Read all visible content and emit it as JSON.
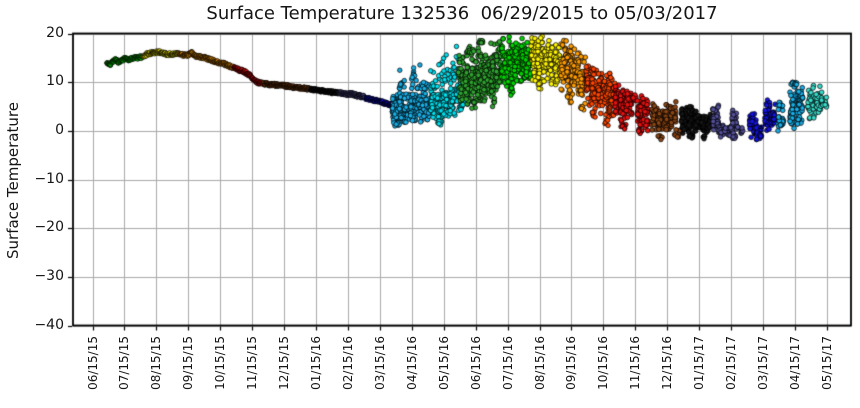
{
  "title": "Surface Temperature 132536  06/29/2015 to 05/03/2017",
  "y_axis_label": "Surface Temperature",
  "chart_data": {
    "type": "scatter",
    "title": "Surface Temperature 132536  06/29/2015 to 05/03/2017",
    "xlabel": "",
    "ylabel": "Surface Temperature",
    "ylim": [
      -40,
      20
    ],
    "grid": true,
    "background": "#ffffff",
    "grid_color": "#a9a9a9",
    "frame_color": "#000000",
    "marker_edge_color": "#000000",
    "y_tick_labels": [
      "20",
      "10",
      "0",
      "−10",
      "−20",
      "−30",
      "−40"
    ],
    "y_tick_values": [
      20,
      10,
      0,
      -10,
      -20,
      -30,
      -40
    ],
    "x_tick_labels": [
      "06/15/15",
      "07/15/15",
      "08/15/15",
      "09/15/15",
      "10/15/15",
      "11/15/15",
      "12/15/15",
      "01/15/16",
      "02/15/16",
      "03/15/16",
      "04/15/16",
      "05/15/16",
      "06/15/16",
      "07/15/16",
      "08/15/16",
      "09/15/16",
      "10/15/16",
      "11/15/16",
      "12/15/16",
      "01/15/17",
      "02/15/17",
      "03/15/17",
      "04/15/17",
      "05/15/17"
    ],
    "x_unit": "months_since_06/15/15",
    "palette": {
      "jul_green": "#00D400",
      "aug_yellow": "#FFF500",
      "sep_orange": "#FF9C00",
      "oct_orangered": "#FF4500",
      "nov_red": "#E81010",
      "dec_brown": "#8B4513",
      "jan_black": "#141414",
      "feb_darkslate": "#54509A",
      "mar_blue": "#1414E0",
      "apr_skyblue": "#18AEE6",
      "may_cyan": "#00E0EE",
      "jun_green": "#2FA32F",
      "spring17_turquoise": "#38DCCB"
    },
    "line_segments": [
      {
        "c": "#00D400",
        "pts": [
          [
            0.45,
            14.1
          ],
          [
            0.55,
            13.6
          ],
          [
            0.65,
            14.3
          ],
          [
            0.72,
            14.7
          ],
          [
            0.8,
            14.2
          ],
          [
            0.92,
            14.4
          ],
          [
            1.02,
            14.9
          ],
          [
            1.12,
            14.6
          ],
          [
            1.22,
            14.9
          ],
          [
            1.32,
            15.1
          ],
          [
            1.45,
            15.0
          ],
          [
            1.56,
            15.2
          ]
        ]
      },
      {
        "c": "#FFF500",
        "pts": [
          [
            1.58,
            15.3
          ],
          [
            1.75,
            15.9
          ],
          [
            1.9,
            16.0
          ],
          [
            2.05,
            16.2
          ],
          [
            2.2,
            16.0
          ],
          [
            2.35,
            15.7
          ],
          [
            2.5,
            15.8
          ],
          [
            2.62,
            15.9
          ],
          [
            2.7,
            15.8
          ]
        ]
      },
      {
        "c": "#FF9C00",
        "pts": [
          [
            2.72,
            15.8
          ],
          [
            2.9,
            15.5
          ],
          [
            3.0,
            15.6
          ],
          [
            3.1,
            16.0
          ],
          [
            3.2,
            15.5
          ],
          [
            3.35,
            15.2
          ],
          [
            3.5,
            15.0
          ],
          [
            3.7,
            14.6
          ],
          [
            3.9,
            14.1
          ],
          [
            4.1,
            13.8
          ],
          [
            4.25,
            13.4
          ],
          [
            4.4,
            13.1
          ]
        ]
      },
      {
        "c": "#E81010",
        "pts": [
          [
            4.42,
            13.0
          ],
          [
            4.6,
            12.5
          ],
          [
            4.75,
            12.2
          ],
          [
            4.9,
            11.5
          ],
          [
            5.0,
            10.8
          ],
          [
            5.1,
            10.2
          ],
          [
            5.2,
            9.9
          ],
          [
            5.33,
            9.8
          ]
        ]
      },
      {
        "c": "#8B4513",
        "pts": [
          [
            5.36,
            9.7
          ],
          [
            5.6,
            9.5
          ],
          [
            5.8,
            9.4
          ],
          [
            6.1,
            9.2
          ],
          [
            6.4,
            8.9
          ],
          [
            6.65,
            8.7
          ],
          [
            6.8,
            8.6
          ]
        ]
      },
      {
        "c": "#141414",
        "pts": [
          [
            6.83,
            8.5
          ],
          [
            7.1,
            8.3
          ],
          [
            7.3,
            8.1
          ],
          [
            7.5,
            7.9
          ],
          [
            7.7,
            7.8
          ]
        ]
      },
      {
        "c": "#54509A",
        "pts": [
          [
            7.73,
            7.8
          ],
          [
            7.95,
            7.5
          ],
          [
            8.1,
            7.6
          ],
          [
            8.25,
            7.3
          ],
          [
            8.4,
            7.1
          ],
          [
            8.53,
            6.9
          ]
        ]
      },
      {
        "c": "#1414E0",
        "pts": [
          [
            8.56,
            6.7
          ],
          [
            8.8,
            6.3
          ],
          [
            9.0,
            6.0
          ],
          [
            9.15,
            5.7
          ],
          [
            9.3,
            5.4
          ],
          [
            9.42,
            5.2
          ],
          [
            9.54,
            5.3
          ]
        ]
      }
    ],
    "cluster_stripes": [
      {
        "c": "#18AEE6",
        "m": 9.52,
        "y": 4.5,
        "lo": 1.8,
        "hi": 7.5,
        "n": 75,
        "w": 0.13,
        "b": 0.8
      },
      {
        "c": "#18AEE6",
        "m": 9.68,
        "y": 5.0,
        "lo": 2.0,
        "hi": 9.0,
        "n": 35,
        "t": 13.5
      },
      {
        "c": "#18AEE6",
        "m": 9.85,
        "y": 4.8,
        "lo": 1.5,
        "hi": 8.0,
        "n": 32
      },
      {
        "c": "#18AEE6",
        "m": 10.05,
        "y": 5.2,
        "lo": 2.0,
        "hi": 10.0,
        "n": 40,
        "t": 17.3
      },
      {
        "c": "#18AEE6",
        "m": 10.25,
        "y": 5.0,
        "lo": 1.8,
        "hi": 8.5,
        "n": 36,
        "t": 15.5
      },
      {
        "c": "#18AEE6",
        "m": 10.45,
        "y": 4.8,
        "lo": 2.0,
        "hi": 7.5,
        "n": 45,
        "w": 0.12,
        "t": 12.0
      },
      {
        "c": "#00E0EE",
        "m": 10.68,
        "y": 5.5,
        "lo": 2.5,
        "hi": 9.0,
        "n": 40,
        "t": 16.0
      },
      {
        "c": "#00E0EE",
        "m": 10.88,
        "y": 5.0,
        "lo": 2.0,
        "hi": 8.0,
        "n": 46,
        "t": 18.0,
        "b": 1.0
      },
      {
        "c": "#00E0EE",
        "m": 11.08,
        "y": 6.0,
        "lo": 2.5,
        "hi": 10.0,
        "n": 42,
        "t": 18.5
      },
      {
        "c": "#00E0EE",
        "m": 11.28,
        "y": 6.5,
        "lo": 3.0,
        "hi": 11.0,
        "n": 40,
        "t": 17.0
      },
      {
        "c": "#00E0EE",
        "m": 11.48,
        "y": 7.0,
        "lo": 3.5,
        "hi": 12.0,
        "n": 36,
        "t": 18.5
      },
      {
        "c": "#00E0EE",
        "m": 11.68,
        "y": 7.5,
        "lo": 4.0,
        "hi": 12.0,
        "n": 30
      },
      {
        "c": "#2FA32F",
        "m": 11.55,
        "y": 9.5,
        "lo": 5.0,
        "hi": 14.0,
        "n": 33,
        "t": 18.0
      },
      {
        "c": "#2FA32F",
        "m": 11.75,
        "y": 10.0,
        "lo": 5.0,
        "hi": 16.0,
        "n": 40,
        "t": 19.0
      },
      {
        "c": "#2FA32F",
        "m": 11.95,
        "y": 10.5,
        "lo": 6.0,
        "hi": 17.0,
        "n": 46,
        "b": 4.0
      },
      {
        "c": "#2FA32F",
        "m": 12.15,
        "y": 11.0,
        "lo": 6.0,
        "hi": 18.0,
        "n": 50,
        "t": 19.5
      },
      {
        "c": "#2FA32F",
        "m": 12.35,
        "y": 11.5,
        "lo": 6.0,
        "hi": 18.0,
        "n": 46
      },
      {
        "c": "#2FA32F",
        "m": 12.55,
        "y": 12.0,
        "lo": 7.0,
        "hi": 18.5,
        "n": 40,
        "b": 4.5
      },
      {
        "c": "#2FA32F",
        "m": 12.72,
        "y": 12.5,
        "lo": 8.0,
        "hi": 19.0,
        "n": 34
      },
      {
        "c": "#00D400",
        "m": 12.9,
        "y": 13.5,
        "lo": 9.0,
        "hi": 19.0,
        "n": 46
      },
      {
        "c": "#00D400",
        "m": 13.1,
        "y": 14.0,
        "lo": 9.0,
        "hi": 19.5,
        "n": 50,
        "b": 6.5
      },
      {
        "c": "#00D400",
        "m": 13.3,
        "y": 14.0,
        "lo": 10.0,
        "hi": 19.5,
        "n": 46
      },
      {
        "c": "#00D400",
        "m": 13.5,
        "y": 14.5,
        "lo": 10.0,
        "hi": 19.8,
        "n": 40
      },
      {
        "c": "#00D400",
        "m": 13.65,
        "y": 14.0,
        "lo": 10.0,
        "hi": 19.0,
        "n": 34
      },
      {
        "c": "#FFF500",
        "m": 13.82,
        "y": 15.0,
        "lo": 10.0,
        "hi": 19.8,
        "n": 50
      },
      {
        "c": "#FFF500",
        "m": 14.02,
        "y": 15.0,
        "lo": 10.0,
        "hi": 19.5,
        "n": 50,
        "b": 8.0
      },
      {
        "c": "#FFF500",
        "m": 14.22,
        "y": 14.5,
        "lo": 9.5,
        "hi": 19.0,
        "n": 44
      },
      {
        "c": "#FFF500",
        "m": 14.42,
        "y": 14.0,
        "lo": 9.0,
        "hi": 18.5,
        "n": 40
      },
      {
        "c": "#FFF500",
        "m": 14.58,
        "y": 13.5,
        "lo": 9.0,
        "hi": 18.0,
        "n": 34
      },
      {
        "c": "#FF9C00",
        "m": 14.75,
        "y": 13.0,
        "lo": 8.0,
        "hi": 19.0,
        "n": 46
      },
      {
        "c": "#FF9C00",
        "m": 14.95,
        "y": 12.5,
        "lo": 7.0,
        "hi": 18.0,
        "n": 46,
        "b": 5.0
      },
      {
        "c": "#FF9C00",
        "m": 15.15,
        "y": 12.0,
        "lo": 6.5,
        "hi": 17.0,
        "n": 40
      },
      {
        "c": "#FF9C00",
        "m": 15.35,
        "y": 11.0,
        "lo": 5.0,
        "hi": 16.0,
        "n": 30,
        "b": 3.5
      },
      {
        "c": "#FF4500",
        "m": 15.55,
        "y": 10.0,
        "lo": 5.0,
        "hi": 13.5,
        "n": 44
      },
      {
        "c": "#FF4500",
        "m": 15.72,
        "y": 9.0,
        "lo": 4.0,
        "hi": 13.0,
        "n": 40,
        "b": 2.0
      },
      {
        "c": "#FF4500",
        "m": 15.92,
        "y": 8.5,
        "lo": 3.5,
        "hi": 13.0,
        "n": 44
      },
      {
        "c": "#FF4500",
        "m": 16.12,
        "y": 8.0,
        "lo": 3.0,
        "hi": 12.5,
        "n": 40,
        "b": 0.5
      },
      {
        "c": "#FF4500",
        "m": 16.3,
        "y": 7.5,
        "lo": 2.5,
        "hi": 12.0,
        "n": 34
      },
      {
        "c": "#E81010",
        "m": 16.45,
        "y": 6.5,
        "lo": 2.0,
        "hi": 9.5,
        "n": 40
      },
      {
        "c": "#E81010",
        "m": 16.62,
        "y": 5.0,
        "lo": 1.0,
        "hi": 8.5,
        "n": 44,
        "b": -0.5
      },
      {
        "c": "#E81010",
        "m": 16.8,
        "y": 6.0,
        "lo": 2.5,
        "hi": 9.0,
        "n": 34
      },
      {
        "c": "#E81010",
        "m": 16.95,
        "y": 6.5,
        "lo": 5.5,
        "hi": 7.5,
        "n": 6
      },
      {
        "c": "#E81010",
        "m": 17.15,
        "y": 4.0,
        "lo": 0.0,
        "hi": 7.5,
        "n": 40,
        "b": -2.0
      },
      {
        "c": "#E81010",
        "m": 17.32,
        "y": 3.5,
        "lo": -0.5,
        "hi": 7.0,
        "n": 30
      },
      {
        "c": "#8B4513",
        "m": 17.6,
        "y": 3.0,
        "lo": 0.0,
        "hi": 6.0,
        "n": 36
      },
      {
        "c": "#8B4513",
        "m": 17.78,
        "y": 2.0,
        "lo": -1.0,
        "hi": 4.5,
        "n": 30,
        "b": -2.5
      },
      {
        "c": "#8B4513",
        "m": 17.98,
        "y": 2.5,
        "lo": -0.5,
        "hi": 5.5,
        "n": 36
      },
      {
        "c": "#8B4513",
        "m": 18.18,
        "y": 3.0,
        "lo": 0.5,
        "hi": 6.0,
        "n": 30
      },
      {
        "c": "#8B4513",
        "m": 18.32,
        "y": -0.5,
        "lo": -2.5,
        "hi": 1.0,
        "n": 8
      },
      {
        "c": "#141414",
        "m": 18.55,
        "y": 2.5,
        "lo": -0.5,
        "hi": 5.5,
        "n": 52,
        "w": 0.12
      },
      {
        "c": "#141414",
        "m": 18.75,
        "y": 2.0,
        "lo": -1.0,
        "hi": 5.0,
        "n": 46,
        "b": -2.5
      },
      {
        "c": "#141414",
        "m": 18.95,
        "y": 2.0,
        "lo": -1.0,
        "hi": 4.5,
        "n": 36
      },
      {
        "c": "#141414",
        "m": 19.15,
        "y": 1.5,
        "lo": -1.0,
        "hi": 4.0,
        "n": 30,
        "b": -2.0
      },
      {
        "c": "#141414",
        "m": 19.32,
        "y": 1.5,
        "lo": -0.5,
        "hi": 3.5,
        "n": 26
      },
      {
        "c": "#54509A",
        "m": 19.52,
        "y": 2.5,
        "lo": -0.5,
        "hi": 5.5,
        "n": 40,
        "w": 0.1
      },
      {
        "c": "#54509A",
        "m": 19.68,
        "y": 0.0,
        "lo": -1.5,
        "hi": 1.5,
        "n": 20
      },
      {
        "c": "#54509A",
        "m": 19.88,
        "y": 0.5,
        "lo": -1.0,
        "hi": 2.0,
        "n": 12
      },
      {
        "c": "#54509A",
        "m": 20.08,
        "y": 2.0,
        "lo": -1.0,
        "hi": 4.5,
        "n": 30,
        "b": -2.0
      },
      {
        "c": "#54509A",
        "m": 20.28,
        "y": 0.0,
        "lo": -1.5,
        "hi": 1.0,
        "n": 8
      },
      {
        "c": "#1414E0",
        "m": 20.68,
        "y": 1.5,
        "lo": -1.5,
        "hi": 4.0,
        "n": 46,
        "w": 0.1
      },
      {
        "c": "#1414E0",
        "m": 20.88,
        "y": -0.5,
        "lo": -2.0,
        "hi": 1.0,
        "n": 30
      },
      {
        "c": "#1414E0",
        "m": 21.15,
        "y": 2.5,
        "lo": 0.0,
        "hi": 5.0,
        "n": 36,
        "t": 6.5
      },
      {
        "c": "#1414E0",
        "m": 21.32,
        "y": 3.0,
        "lo": 1.0,
        "hi": 5.5,
        "n": 20
      },
      {
        "c": "#18AEE6",
        "m": 21.55,
        "y": 2.0,
        "lo": 0.0,
        "hi": 5.0,
        "n": 26,
        "t": 6.5
      },
      {
        "c": "#18AEE6",
        "m": 21.95,
        "y": 4.5,
        "lo": 0.5,
        "hi": 9.5,
        "n": 52,
        "w": 0.11,
        "t": 10.5
      },
      {
        "c": "#18AEE6",
        "m": 22.15,
        "y": 5.5,
        "lo": 1.0,
        "hi": 10.0,
        "n": 46
      },
      {
        "c": "#38DCCB",
        "m": 22.5,
        "y": 6.0,
        "lo": 2.5,
        "hi": 9.5,
        "n": 46,
        "w": 0.1
      },
      {
        "c": "#38DCCB",
        "m": 22.72,
        "y": 6.5,
        "lo": 3.5,
        "hi": 9.5,
        "n": 40
      },
      {
        "c": "#38DCCB",
        "m": 22.9,
        "y": 5.5,
        "lo": 4.0,
        "hi": 8.0,
        "n": 16
      }
    ]
  }
}
